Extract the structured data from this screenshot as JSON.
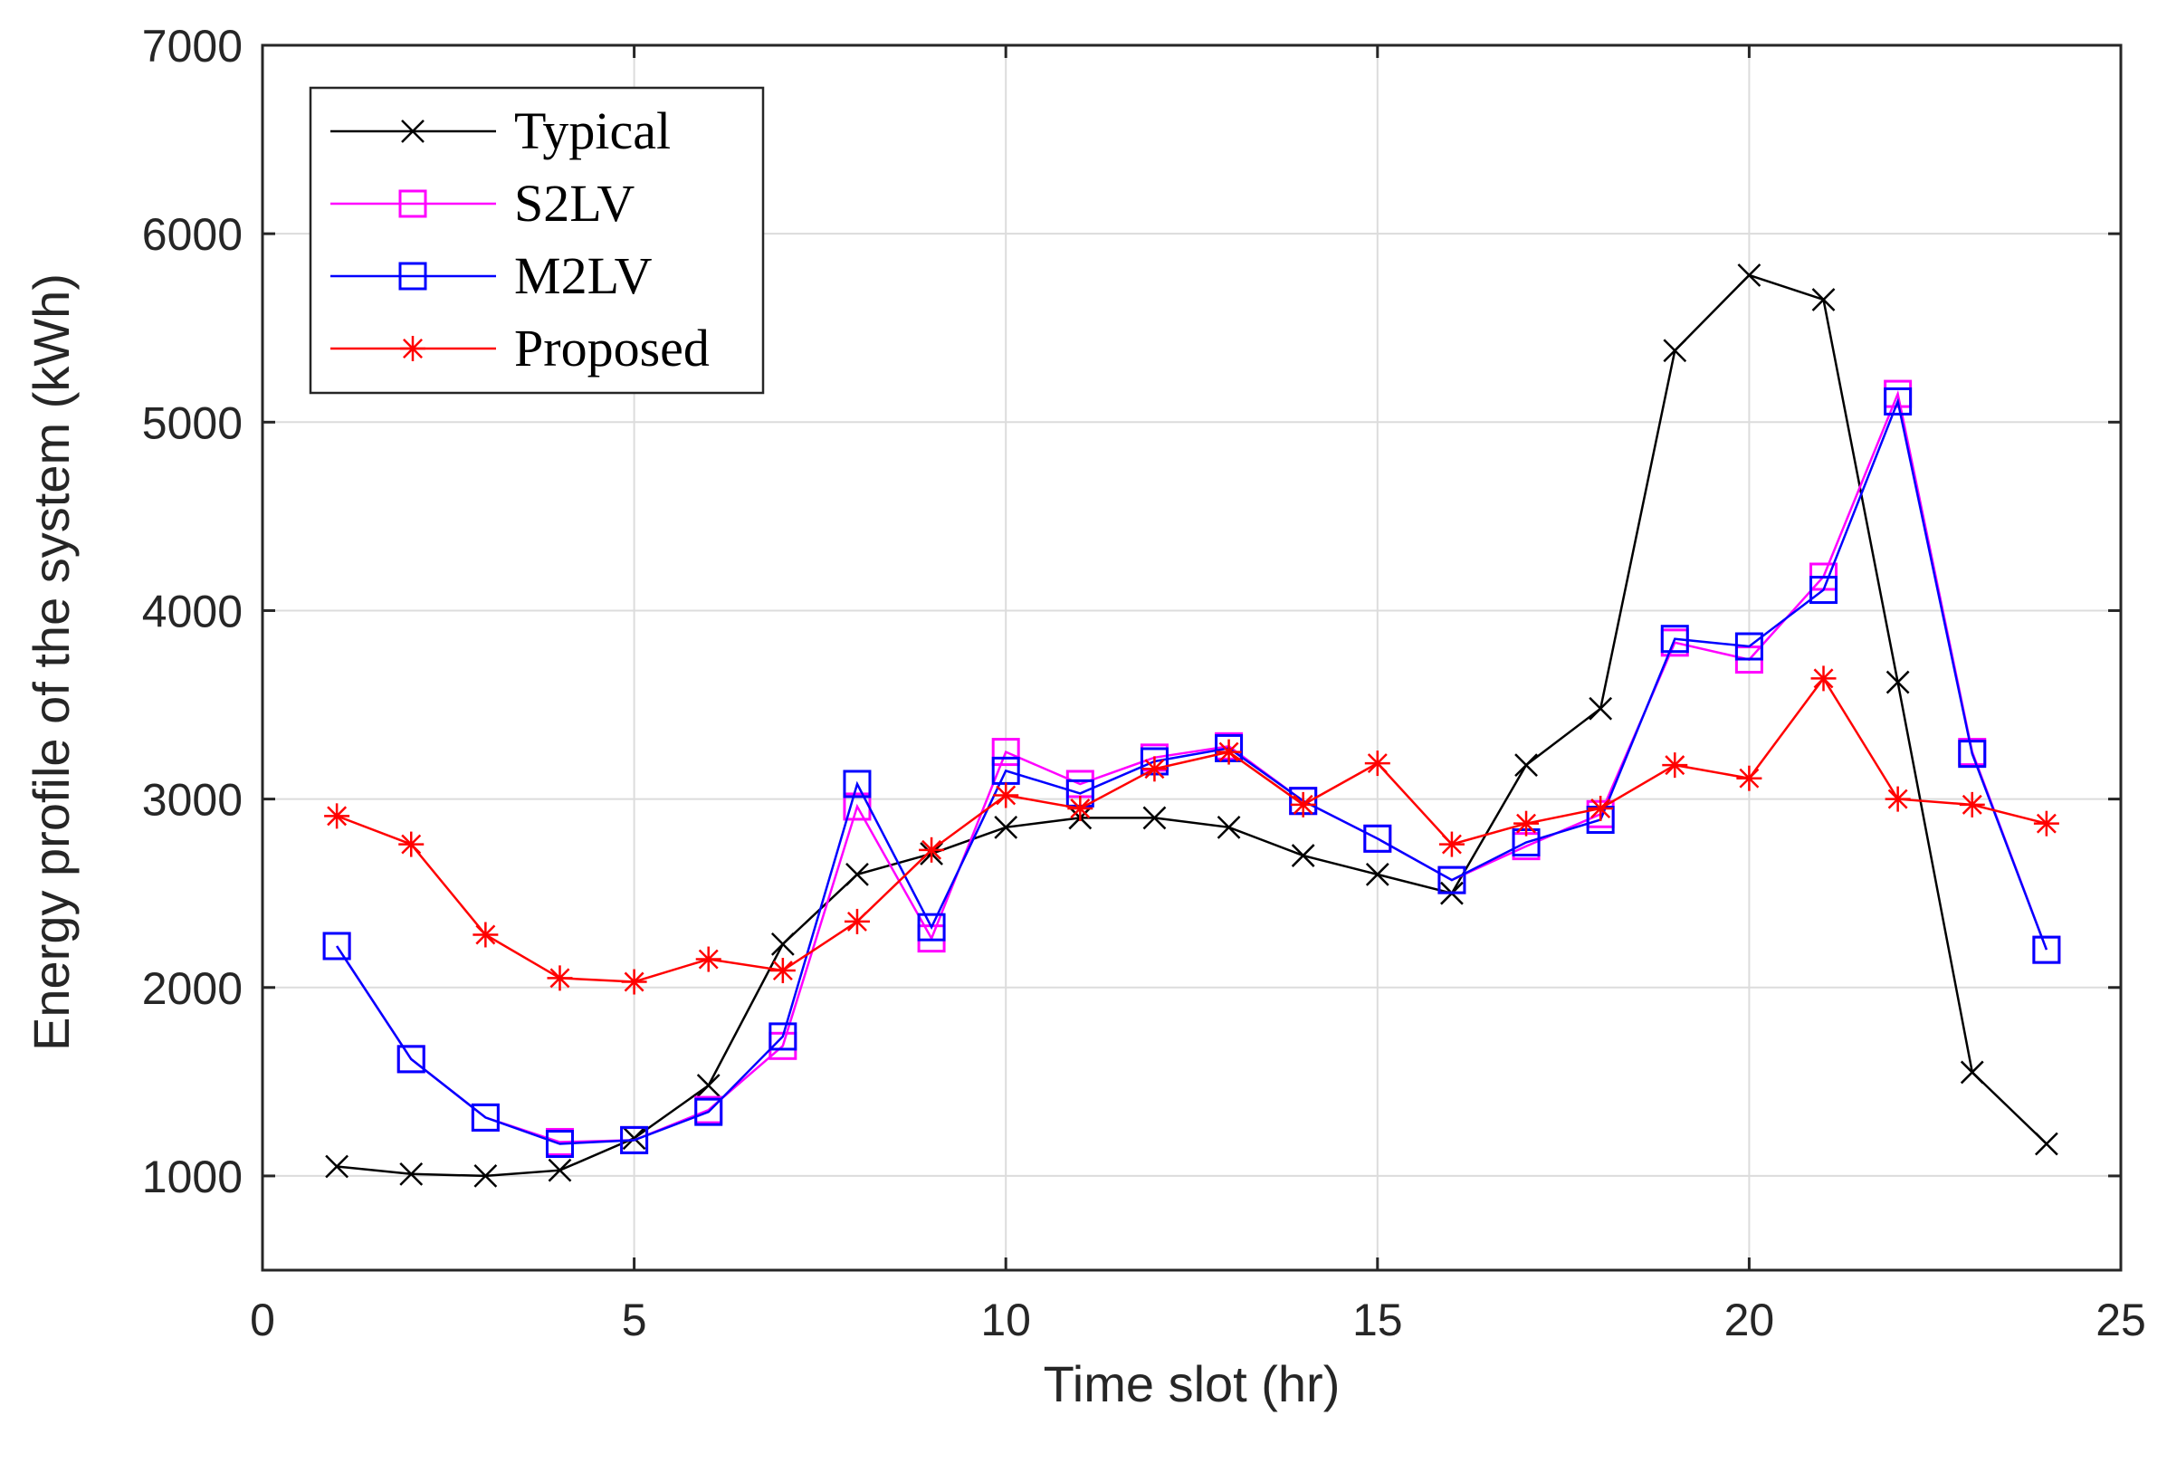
{
  "chart_data": {
    "type": "line",
    "title": "",
    "xlabel": "Time slot (hr)",
    "ylabel": "Energy profile of the system (kWh)",
    "xlim": [
      0,
      25
    ],
    "ylim": [
      500,
      7000
    ],
    "xticks": [
      0,
      5,
      10,
      15,
      20,
      25
    ],
    "yticks": [
      1000,
      2000,
      3000,
      4000,
      5000,
      6000,
      7000
    ],
    "xtick_labels": [
      "0",
      "5",
      "10",
      "15",
      "20",
      "25"
    ],
    "ytick_labels": [
      "1000",
      "2000",
      "3000",
      "4000",
      "5000",
      "6000",
      "7000"
    ],
    "grid": true,
    "legend_position": "top-left",
    "x": [
      1,
      2,
      3,
      4,
      5,
      6,
      7,
      8,
      9,
      10,
      11,
      12,
      13,
      14,
      15,
      16,
      17,
      18,
      19,
      20,
      21,
      22,
      23,
      24
    ],
    "series": [
      {
        "name": "Typical",
        "color": "#000000",
        "marker": "x",
        "values": [
          1050,
          1010,
          1000,
          1030,
          1200,
          1480,
          2230,
          2600,
          2710,
          2850,
          2900,
          2900,
          2850,
          2700,
          2600,
          2500,
          3180,
          3480,
          5380,
          5780,
          5650,
          3620,
          1550,
          1170
        ]
      },
      {
        "name": "S2LV",
        "color": "#ff00ff",
        "marker": "square",
        "values": [
          2220,
          1620,
          1310,
          1180,
          1190,
          1350,
          1690,
          2960,
          2260,
          3250,
          3080,
          3220,
          3280,
          2990,
          2790,
          2570,
          2750,
          2920,
          3830,
          3740,
          4180,
          5150,
          3250,
          2200
        ]
      },
      {
        "name": "M2LV",
        "color": "#0000ff",
        "marker": "square",
        "values": [
          2220,
          1620,
          1310,
          1170,
          1190,
          1340,
          1740,
          3080,
          2320,
          3150,
          3030,
          3200,
          3270,
          2990,
          2790,
          2570,
          2770,
          2890,
          3850,
          3810,
          4110,
          5110,
          3240,
          2200
        ]
      },
      {
        "name": "Proposed",
        "color": "#ff0000",
        "marker": "asterisk",
        "values": [
          2910,
          2760,
          2280,
          2050,
          2030,
          2150,
          2090,
          2350,
          2730,
          3020,
          2950,
          3160,
          3250,
          2970,
          3190,
          2760,
          2870,
          2950,
          3180,
          3110,
          3640,
          3000,
          2970,
          2870
        ]
      }
    ]
  }
}
